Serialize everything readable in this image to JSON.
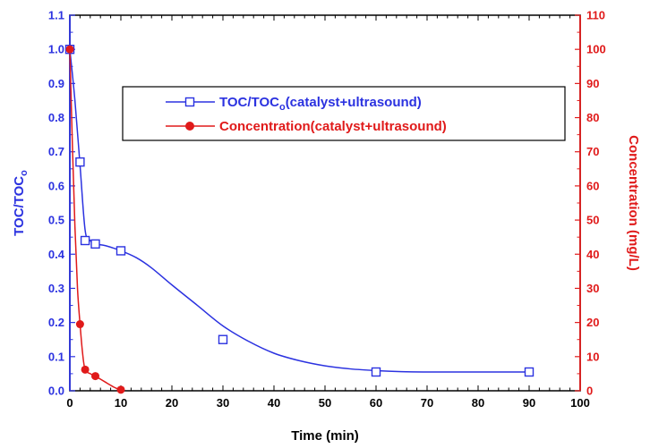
{
  "chart_data": {
    "type": "scatter",
    "x_axis": {
      "label": "Time (min)",
      "range": [
        0,
        100
      ],
      "ticks": [
        0,
        10,
        20,
        30,
        40,
        50,
        60,
        70,
        80,
        90,
        100
      ],
      "minor_step": 2
    },
    "y_axis_left": {
      "label_main": "TOC/TOC",
      "label_sub": "o",
      "range": [
        0,
        1.1
      ],
      "ticks": [
        0.0,
        0.1,
        0.2,
        0.3,
        0.4,
        0.5,
        0.6,
        0.7,
        0.8,
        0.9,
        1.0,
        1.1
      ],
      "tick_labels": [
        "0.0",
        "0.1",
        "0.2",
        "0.3",
        "0.4",
        "0.5",
        "0.6",
        "0.7",
        "0.8",
        "0.9",
        "1.0",
        "1.1"
      ],
      "color": "#2b32e0"
    },
    "y_axis_right": {
      "label": "Concentration (mg/L)",
      "range": [
        0,
        110
      ],
      "ticks": [
        0,
        10,
        20,
        30,
        40,
        50,
        60,
        70,
        80,
        90,
        100,
        110
      ],
      "color": "#e01a1a"
    },
    "series": [
      {
        "name_main": "TOC/TOC",
        "name_sub": "o",
        "name_suffix": "(catalyst+ultrasound)",
        "axis": "left",
        "marker": "open-square",
        "color": "#2b32e0",
        "x": [
          0,
          2,
          3,
          5,
          10,
          30,
          60,
          90
        ],
        "y": [
          1.0,
          0.67,
          0.44,
          0.43,
          0.41,
          0.15,
          0.055,
          0.055
        ],
        "curve_x": [
          0,
          1,
          2,
          3,
          4,
          5,
          7,
          10,
          13,
          16,
          20,
          25,
          30,
          35,
          40,
          45,
          50,
          55,
          60,
          65,
          70,
          75,
          80,
          85,
          90
        ],
        "curve_y": [
          1.0,
          0.85,
          0.66,
          0.47,
          0.44,
          0.43,
          0.425,
          0.41,
          0.39,
          0.36,
          0.31,
          0.25,
          0.19,
          0.145,
          0.11,
          0.088,
          0.073,
          0.064,
          0.059,
          0.056,
          0.055,
          0.055,
          0.055,
          0.055,
          0.055
        ]
      },
      {
        "name": "Concentration(catalyst+ultrasound)",
        "axis": "right",
        "marker": "filled-circle",
        "color": "#e01a1a",
        "x": [
          0,
          2,
          3,
          5,
          10
        ],
        "y": [
          100,
          19.5,
          6.2,
          4.3,
          0.3
        ],
        "curve_x": [
          0,
          0.5,
          1,
          1.5,
          2,
          2.5,
          3,
          4,
          5,
          6,
          7,
          8,
          9,
          10
        ],
        "curve_y": [
          100,
          72,
          48,
          30,
          19.5,
          11,
          6.2,
          5.0,
          4.3,
          3.4,
          2.5,
          1.6,
          0.8,
          0.3
        ]
      }
    ],
    "legend_position": "top-right inside"
  }
}
